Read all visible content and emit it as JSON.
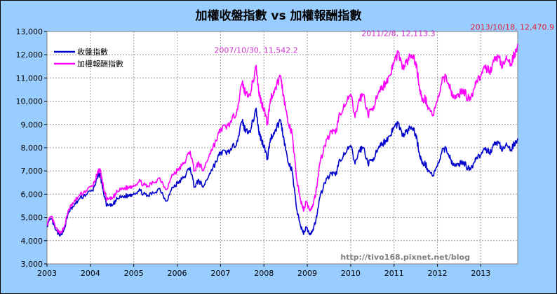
{
  "chart_data": {
    "type": "line",
    "title": "加權收盤指數 vs 加權報酬指數",
    "xlabel": "",
    "ylabel": "",
    "x_ticks": [
      "2003",
      "2004",
      "2005",
      "2006",
      "2007",
      "2008",
      "2009",
      "2010",
      "2011",
      "2012",
      "2013"
    ],
    "y_ticks": [
      "3,000",
      "4,000",
      "5,000",
      "6,000",
      "7,000",
      "8,000",
      "9,000",
      "10,000",
      "11,000",
      "12,000",
      "13,000"
    ],
    "xlim": [
      2003.0,
      2013.85
    ],
    "ylim": [
      3000,
      13000
    ],
    "grid": true,
    "legend_position": "top-left",
    "series": [
      {
        "name": "收盤指數",
        "color": "#0000cc",
        "points": [
          [
            2003.0,
            4650
          ],
          [
            2003.1,
            4950
          ],
          [
            2003.2,
            4450
          ],
          [
            2003.3,
            4200
          ],
          [
            2003.4,
            4500
          ],
          [
            2003.5,
            5250
          ],
          [
            2003.6,
            5450
          ],
          [
            2003.75,
            5800
          ],
          [
            2003.9,
            6000
          ],
          [
            2004.05,
            6150
          ],
          [
            2004.15,
            6650
          ],
          [
            2004.22,
            6900
          ],
          [
            2004.3,
            6100
          ],
          [
            2004.38,
            5500
          ],
          [
            2004.5,
            5500
          ],
          [
            2004.62,
            5800
          ],
          [
            2004.75,
            5900
          ],
          [
            2004.9,
            5950
          ],
          [
            2005.0,
            6050
          ],
          [
            2005.15,
            6150
          ],
          [
            2005.3,
            5900
          ],
          [
            2005.45,
            6050
          ],
          [
            2005.6,
            6250
          ],
          [
            2005.75,
            5700
          ],
          [
            2005.9,
            6300
          ],
          [
            2006.0,
            6450
          ],
          [
            2006.15,
            6700
          ],
          [
            2006.3,
            7150
          ],
          [
            2006.4,
            6300
          ],
          [
            2006.5,
            6600
          ],
          [
            2006.6,
            6300
          ],
          [
            2006.75,
            6900
          ],
          [
            2006.9,
            7400
          ],
          [
            2007.0,
            7800
          ],
          [
            2007.12,
            7800
          ],
          [
            2007.25,
            7900
          ],
          [
            2007.38,
            8300
          ],
          [
            2007.5,
            9150
          ],
          [
            2007.58,
            8700
          ],
          [
            2007.7,
            8800
          ],
          [
            2007.82,
            9700
          ],
          [
            2007.88,
            8700
          ],
          [
            2007.95,
            8300
          ],
          [
            2008.0,
            8100
          ],
          [
            2008.08,
            7500
          ],
          [
            2008.15,
            8400
          ],
          [
            2008.25,
            8700
          ],
          [
            2008.38,
            9200
          ],
          [
            2008.45,
            8500
          ],
          [
            2008.55,
            7400
          ],
          [
            2008.65,
            7000
          ],
          [
            2008.75,
            5400
          ],
          [
            2008.85,
            4600
          ],
          [
            2008.92,
            4300
          ],
          [
            2008.97,
            4600
          ],
          [
            2009.05,
            4300
          ],
          [
            2009.12,
            4400
          ],
          [
            2009.2,
            4900
          ],
          [
            2009.28,
            5800
          ],
          [
            2009.4,
            6500
          ],
          [
            2009.55,
            6900
          ],
          [
            2009.65,
            6800
          ],
          [
            2009.75,
            7500
          ],
          [
            2009.9,
            7800
          ],
          [
            2010.0,
            8100
          ],
          [
            2010.1,
            7300
          ],
          [
            2010.2,
            7900
          ],
          [
            2010.3,
            8000
          ],
          [
            2010.4,
            7300
          ],
          [
            2010.5,
            7500
          ],
          [
            2010.6,
            7800
          ],
          [
            2010.7,
            8100
          ],
          [
            2010.8,
            8300
          ],
          [
            2010.9,
            8500
          ],
          [
            2011.0,
            8900
          ],
          [
            2011.1,
            9050
          ],
          [
            2011.2,
            8500
          ],
          [
            2011.3,
            8700
          ],
          [
            2011.4,
            8900
          ],
          [
            2011.5,
            8600
          ],
          [
            2011.58,
            7800
          ],
          [
            2011.65,
            7300
          ],
          [
            2011.72,
            7300
          ],
          [
            2011.8,
            7000
          ],
          [
            2011.9,
            6800
          ],
          [
            2012.0,
            7200
          ],
          [
            2012.1,
            7800
          ],
          [
            2012.2,
            8000
          ],
          [
            2012.3,
            7500
          ],
          [
            2012.4,
            7200
          ],
          [
            2012.5,
            7300
          ],
          [
            2012.6,
            7400
          ],
          [
            2012.7,
            7100
          ],
          [
            2012.8,
            7200
          ],
          [
            2012.9,
            7600
          ],
          [
            2013.0,
            7700
          ],
          [
            2013.1,
            7900
          ],
          [
            2013.2,
            7800
          ],
          [
            2013.3,
            8100
          ],
          [
            2013.4,
            8250
          ],
          [
            2013.5,
            7900
          ],
          [
            2013.6,
            8100
          ],
          [
            2013.7,
            7900
          ],
          [
            2013.78,
            8200
          ],
          [
            2013.85,
            8400
          ]
        ]
      },
      {
        "name": "加權報酬指數",
        "color": "#ff00ff",
        "points": [
          [
            2003.0,
            4700
          ],
          [
            2003.1,
            5050
          ],
          [
            2003.2,
            4550
          ],
          [
            2003.3,
            4300
          ],
          [
            2003.4,
            4600
          ],
          [
            2003.5,
            5350
          ],
          [
            2003.6,
            5600
          ],
          [
            2003.75,
            5950
          ],
          [
            2003.9,
            6150
          ],
          [
            2004.05,
            6350
          ],
          [
            2004.15,
            6800
          ],
          [
            2004.22,
            7100
          ],
          [
            2004.3,
            6300
          ],
          [
            2004.38,
            5750
          ],
          [
            2004.5,
            5800
          ],
          [
            2004.62,
            6100
          ],
          [
            2004.75,
            6250
          ],
          [
            2004.9,
            6300
          ],
          [
            2005.0,
            6400
          ],
          [
            2005.15,
            6550
          ],
          [
            2005.3,
            6300
          ],
          [
            2005.45,
            6500
          ],
          [
            2005.6,
            6700
          ],
          [
            2005.75,
            6200
          ],
          [
            2005.9,
            6850
          ],
          [
            2006.0,
            7000
          ],
          [
            2006.15,
            7300
          ],
          [
            2006.3,
            7850
          ],
          [
            2006.4,
            7000
          ],
          [
            2006.5,
            7350
          ],
          [
            2006.6,
            7000
          ],
          [
            2006.75,
            7750
          ],
          [
            2006.9,
            8300
          ],
          [
            2007.0,
            8800
          ],
          [
            2007.12,
            8900
          ],
          [
            2007.25,
            9100
          ],
          [
            2007.38,
            9650
          ],
          [
            2007.5,
            10800
          ],
          [
            2007.58,
            10300
          ],
          [
            2007.7,
            10400
          ],
          [
            2007.82,
            11542
          ],
          [
            2007.88,
            10400
          ],
          [
            2007.95,
            9900
          ],
          [
            2008.0,
            9700
          ],
          [
            2008.08,
            9000
          ],
          [
            2008.15,
            10100
          ],
          [
            2008.25,
            10500
          ],
          [
            2008.38,
            11100
          ],
          [
            2008.45,
            10300
          ],
          [
            2008.55,
            9100
          ],
          [
            2008.65,
            8600
          ],
          [
            2008.75,
            6700
          ],
          [
            2008.85,
            5700
          ],
          [
            2008.92,
            5300
          ],
          [
            2008.97,
            5700
          ],
          [
            2009.05,
            5350
          ],
          [
            2009.12,
            5450
          ],
          [
            2009.2,
            6100
          ],
          [
            2009.28,
            7250
          ],
          [
            2009.4,
            8100
          ],
          [
            2009.55,
            8700
          ],
          [
            2009.65,
            8600
          ],
          [
            2009.75,
            9500
          ],
          [
            2009.9,
            9900
          ],
          [
            2010.0,
            10300
          ],
          [
            2010.1,
            9300
          ],
          [
            2010.2,
            10100
          ],
          [
            2010.3,
            10300
          ],
          [
            2010.4,
            9400
          ],
          [
            2010.5,
            9700
          ],
          [
            2010.6,
            10100
          ],
          [
            2010.7,
            10500
          ],
          [
            2010.8,
            10800
          ],
          [
            2010.9,
            11100
          ],
          [
            2011.0,
            11700
          ],
          [
            2011.1,
            12113
          ],
          [
            2011.2,
            11400
          ],
          [
            2011.3,
            11700
          ],
          [
            2011.4,
            12000
          ],
          [
            2011.5,
            11700
          ],
          [
            2011.58,
            10700
          ],
          [
            2011.65,
            10000
          ],
          [
            2011.72,
            10100
          ],
          [
            2011.8,
            9700
          ],
          [
            2011.9,
            9400
          ],
          [
            2012.0,
            10000
          ],
          [
            2012.1,
            10800
          ],
          [
            2012.2,
            11100
          ],
          [
            2012.3,
            10500
          ],
          [
            2012.4,
            10100
          ],
          [
            2012.5,
            10300
          ],
          [
            2012.6,
            10500
          ],
          [
            2012.7,
            10100
          ],
          [
            2012.8,
            10300
          ],
          [
            2012.9,
            10900
          ],
          [
            2013.0,
            11100
          ],
          [
            2013.1,
            11400
          ],
          [
            2013.2,
            11300
          ],
          [
            2013.3,
            11700
          ],
          [
            2013.4,
            11950
          ],
          [
            2013.5,
            11500
          ],
          [
            2013.6,
            11800
          ],
          [
            2013.7,
            11600
          ],
          [
            2013.78,
            12050
          ],
          [
            2013.85,
            12470.9
          ]
        ]
      }
    ],
    "annotations": [
      {
        "text": "2007/10/30, 11,542.2",
        "x": 2007.82,
        "y": 11542.2,
        "color": "#cc33cc"
      },
      {
        "text": "2011/2/8, 12,113.3",
        "x": 2011.1,
        "y": 12113.3,
        "color": "#cc33cc"
      },
      {
        "text": "2013/10/18, 12,470.9",
        "x": 2013.85,
        "y": 12470.9,
        "color": "#e0203a"
      }
    ],
    "watermark": "http://tivo168.pixnet.net/blog"
  }
}
